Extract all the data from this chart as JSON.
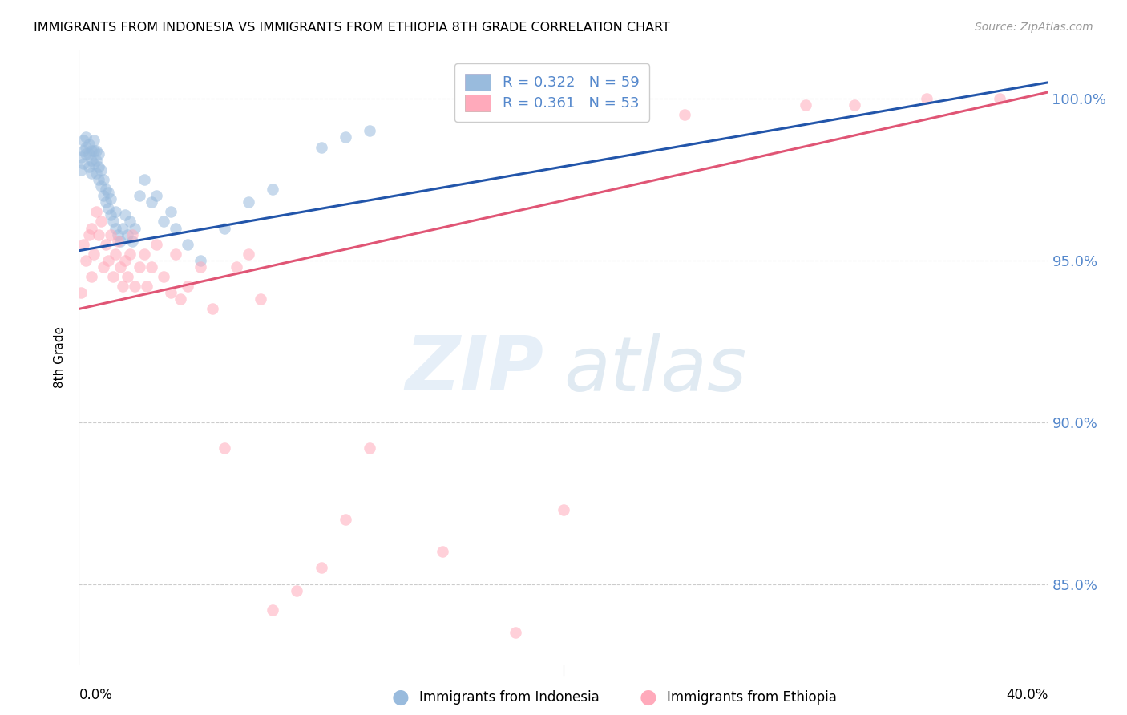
{
  "title": "IMMIGRANTS FROM INDONESIA VS IMMIGRANTS FROM ETHIOPIA 8TH GRADE CORRELATION CHART",
  "source": "Source: ZipAtlas.com",
  "ylabel": "8th Grade",
  "y_tick_labels": [
    "85.0%",
    "90.0%",
    "95.0%",
    "100.0%"
  ],
  "y_tick_values": [
    0.85,
    0.9,
    0.95,
    1.0
  ],
  "xlim": [
    0.0,
    0.4
  ],
  "ylim": [
    0.825,
    1.015
  ],
  "blue_R": 0.322,
  "blue_N": 59,
  "pink_R": 0.361,
  "pink_N": 53,
  "blue_line_color": "#2255AA",
  "pink_line_color": "#E05575",
  "dot_blue_color": "#99BBDD",
  "dot_pink_color": "#FFAABB",
  "dot_size": 110,
  "dot_alpha": 0.55,
  "grid_color": "#CCCCCC",
  "right_axis_color": "#5588CC",
  "blue_line_x0": 0.0,
  "blue_line_y0": 0.953,
  "blue_line_x1": 0.4,
  "blue_line_y1": 1.005,
  "pink_line_x0": 0.0,
  "pink_line_y0": 0.935,
  "pink_line_x1": 0.4,
  "pink_line_y1": 1.002,
  "indo_x": [
    0.001,
    0.001,
    0.002,
    0.002,
    0.002,
    0.003,
    0.003,
    0.003,
    0.004,
    0.004,
    0.004,
    0.005,
    0.005,
    0.005,
    0.006,
    0.006,
    0.006,
    0.007,
    0.007,
    0.007,
    0.008,
    0.008,
    0.008,
    0.009,
    0.009,
    0.01,
    0.01,
    0.011,
    0.011,
    0.012,
    0.012,
    0.013,
    0.013,
    0.014,
    0.015,
    0.015,
    0.016,
    0.017,
    0.018,
    0.019,
    0.02,
    0.021,
    0.022,
    0.023,
    0.025,
    0.027,
    0.03,
    0.032,
    0.035,
    0.038,
    0.04,
    0.045,
    0.05,
    0.06,
    0.07,
    0.08,
    0.1,
    0.11,
    0.12
  ],
  "indo_y": [
    0.982,
    0.978,
    0.984,
    0.987,
    0.98,
    0.985,
    0.988,
    0.983,
    0.983,
    0.986,
    0.979,
    0.984,
    0.981,
    0.977,
    0.98,
    0.984,
    0.987,
    0.977,
    0.981,
    0.984,
    0.975,
    0.979,
    0.983,
    0.973,
    0.978,
    0.97,
    0.975,
    0.968,
    0.972,
    0.966,
    0.971,
    0.964,
    0.969,
    0.962,
    0.96,
    0.965,
    0.958,
    0.956,
    0.96,
    0.964,
    0.958,
    0.962,
    0.956,
    0.96,
    0.97,
    0.975,
    0.968,
    0.97,
    0.962,
    0.965,
    0.96,
    0.955,
    0.95,
    0.96,
    0.968,
    0.972,
    0.985,
    0.988,
    0.99
  ],
  "eth_x": [
    0.001,
    0.002,
    0.003,
    0.004,
    0.005,
    0.005,
    0.006,
    0.007,
    0.008,
    0.009,
    0.01,
    0.011,
    0.012,
    0.013,
    0.014,
    0.015,
    0.016,
    0.017,
    0.018,
    0.019,
    0.02,
    0.021,
    0.022,
    0.023,
    0.025,
    0.027,
    0.028,
    0.03,
    0.032,
    0.035,
    0.038,
    0.04,
    0.042,
    0.045,
    0.05,
    0.055,
    0.06,
    0.065,
    0.07,
    0.075,
    0.08,
    0.09,
    0.1,
    0.11,
    0.12,
    0.15,
    0.18,
    0.2,
    0.25,
    0.3,
    0.32,
    0.35,
    0.38
  ],
  "eth_y": [
    0.94,
    0.955,
    0.95,
    0.958,
    0.96,
    0.945,
    0.952,
    0.965,
    0.958,
    0.962,
    0.948,
    0.955,
    0.95,
    0.958,
    0.945,
    0.952,
    0.956,
    0.948,
    0.942,
    0.95,
    0.945,
    0.952,
    0.958,
    0.942,
    0.948,
    0.952,
    0.942,
    0.948,
    0.955,
    0.945,
    0.94,
    0.952,
    0.938,
    0.942,
    0.948,
    0.935,
    0.892,
    0.948,
    0.952,
    0.938,
    0.842,
    0.848,
    0.855,
    0.87,
    0.892,
    0.86,
    0.835,
    0.873,
    0.995,
    0.998,
    0.998,
    1.0,
    1.0
  ]
}
